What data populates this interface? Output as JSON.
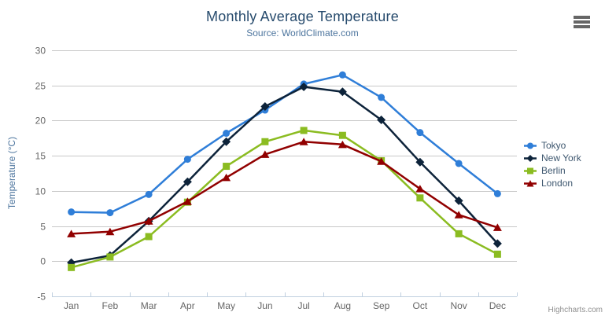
{
  "header": {
    "title": "Monthly Average Temperature",
    "subtitle": "Source: WorldClimate.com"
  },
  "credits": {
    "label": "Highcharts.com"
  },
  "chart_data": {
    "type": "line",
    "title": "Monthly Average Temperature",
    "subtitle": "Source: WorldClimate.com",
    "categories": [
      "Jan",
      "Feb",
      "Mar",
      "Apr",
      "May",
      "Jun",
      "Jul",
      "Aug",
      "Sep",
      "Oct",
      "Nov",
      "Dec"
    ],
    "series": [
      {
        "name": "Tokyo",
        "color": "#2f7ed8",
        "marker": "circle",
        "values": [
          7.0,
          6.9,
          9.5,
          14.5,
          18.2,
          21.5,
          25.2,
          26.5,
          23.3,
          18.3,
          13.9,
          9.6
        ]
      },
      {
        "name": "New York",
        "color": "#0d233a",
        "marker": "diamond",
        "values": [
          -0.2,
          0.8,
          5.7,
          11.3,
          17.0,
          22.0,
          24.8,
          24.1,
          20.1,
          14.1,
          8.6,
          2.5
        ]
      },
      {
        "name": "Berlin",
        "color": "#8bbc21",
        "marker": "square",
        "values": [
          -0.9,
          0.6,
          3.5,
          8.4,
          13.5,
          17.0,
          18.6,
          17.9,
          14.3,
          9.0,
          3.9,
          1.0
        ]
      },
      {
        "name": "London",
        "color": "#910000",
        "marker": "triangle",
        "values": [
          3.9,
          4.2,
          5.7,
          8.5,
          11.9,
          15.2,
          17.0,
          16.6,
          14.2,
          10.3,
          6.6,
          4.8
        ]
      }
    ],
    "xlabel": "",
    "ylabel": "Temperature (°C)",
    "ylim": [
      -5,
      30
    ],
    "y_tick_step": 5,
    "y_tick_labels": [
      "-5",
      "0",
      "5",
      "10",
      "15",
      "20",
      "25",
      "30"
    ],
    "grid": true,
    "legend_position": "right",
    "palette": {
      "grid_line": "#c8c8c8",
      "axis_line": "#c0d0e0",
      "tick_label": "#666666",
      "title_text": "#274b6d",
      "subtitle_text": "#4d759e",
      "legend_text": "#3e576f",
      "credits_text": "#909090",
      "menu_icon": "#666666"
    }
  }
}
